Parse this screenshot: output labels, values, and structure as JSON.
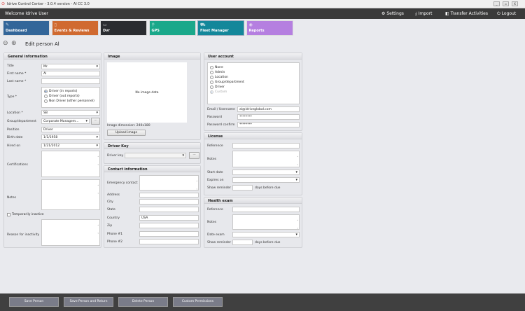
{
  "window": {
    "title": "Idrive Control Center - 3.0.4 version - AI CC 3.0",
    "min": "_",
    "max": "▫",
    "close": "X"
  },
  "header": {
    "welcome": "Welcome Idrive User",
    "settings": "Settings",
    "import": "Import",
    "transfer": "Transfer Activities",
    "logout": "Logout"
  },
  "tiles": [
    {
      "label": "Dashboard",
      "color": "#336699"
    },
    {
      "label": "Events & Reviews",
      "color": "#d06a30"
    },
    {
      "label": "Dvr",
      "color": "#2a2c30"
    },
    {
      "label": "GPS",
      "color": "#1aa88a"
    },
    {
      "label": "Fleet Manager",
      "color": "#13879a"
    },
    {
      "label": "Reports",
      "color": "#b57fe0"
    }
  ],
  "page": {
    "title": "Edit person Al"
  },
  "general": {
    "title": "General information",
    "title_label": "Title",
    "title_value": "Mr.",
    "first_label": "First name *",
    "first_value": "Al",
    "last_label": "Last name *",
    "last_value": "",
    "type_label": "Type *",
    "type_options": [
      "Driver (in reports)",
      "Driver (out reports)",
      "Non Driver (other personnel)"
    ],
    "type_selected": 0,
    "location_label": "Location *",
    "location_value": "SB",
    "group_label": "Group/department",
    "group_value": "Corporate Managem...",
    "group_btn": "...",
    "position_label": "Position",
    "position_value": "Driver",
    "birth_label": "Birth date",
    "birth_value": "1/1/1958",
    "hired_label": "Hired on",
    "hired_value": "1/21/2012",
    "cert_label": "Certifications",
    "notes_label": "Notes",
    "inactive_label": "Temporarily inactive",
    "reason_label": "Reason for inactivity"
  },
  "image": {
    "title": "Image",
    "placeholder": "No image data",
    "dimension": "Image dimension:  240x180",
    "upload": "Upload image"
  },
  "driver_key": {
    "title": "Driver Key",
    "label": "Driver key",
    "btn": "..."
  },
  "contact": {
    "title": "Contact information",
    "emergency": "Emergency contact",
    "address": "Address",
    "city": "City",
    "state": "State",
    "country": "Country",
    "country_value": "USA",
    "zip": "Zip",
    "phone1": "Phone #1",
    "phone2": "Phone #2"
  },
  "account": {
    "title": "User account",
    "roles": [
      "None",
      "Admin",
      "Location",
      "Group/department",
      "Driver",
      "Custom"
    ],
    "selected": 5,
    "email_label": "Email / Username",
    "email_value": "al@idriveglobal.com",
    "pw_label": "Password",
    "pw_value": "********",
    "pwc_label": "Password confirm",
    "pwc_value": "********"
  },
  "license": {
    "title": "License",
    "reference": "Reference",
    "notes": "Notes",
    "start": "Start date",
    "expires": "Expires on",
    "reminder": "Show reminder",
    "days": "days before due"
  },
  "health": {
    "title": "Health exam",
    "reference": "Reference",
    "notes": "Notes",
    "date": "Date exam",
    "reminder": "Show reminder",
    "days": "days before due"
  },
  "footer": {
    "save": "Save Person",
    "save_return": "Save Person and Return",
    "delete": "Delete Person",
    "permissions": "Custom Permissions"
  }
}
